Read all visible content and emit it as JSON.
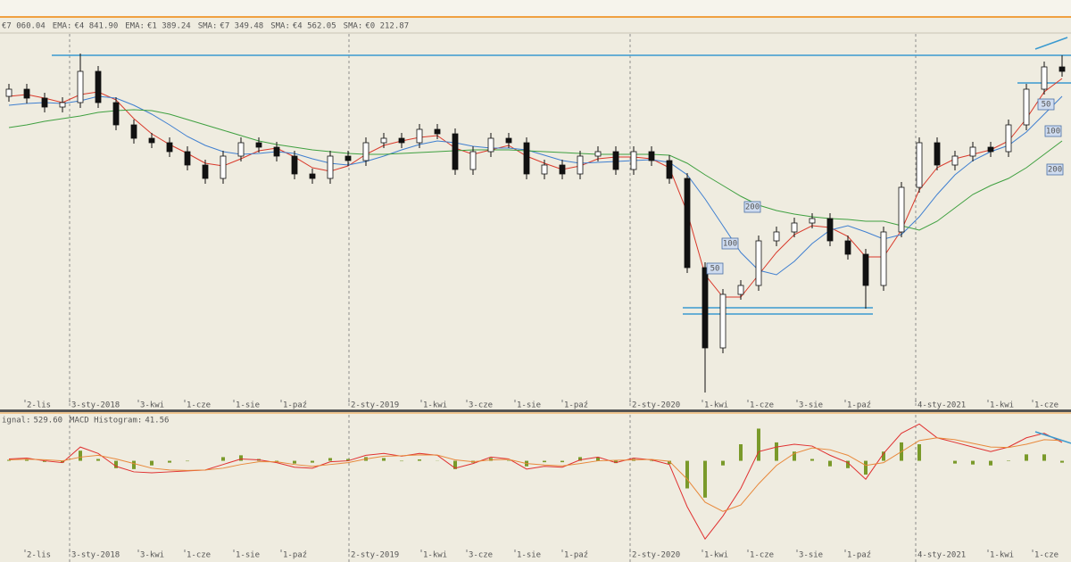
{
  "chart_data": [
    {
      "type": "candlestick",
      "indicators": [
        {
          "value": "€7 060.04",
          "color": "#808080"
        },
        {
          "name": "EMA:",
          "value": "€4 841.90",
          "color": "#e8883a"
        },
        {
          "name": "EMA:",
          "value": "€1 389.24",
          "color": "#d9392b"
        },
        {
          "name": "SMA:",
          "value": "€7 349.48",
          "color": "#3f7fd0"
        },
        {
          "name": "SMA:",
          "value": "€4 562.05",
          "color": "#9a7a3a"
        },
        {
          "name": "SMA:",
          "value": "€0 212.87",
          "color": "#3fa040"
        }
      ],
      "x": [
        10,
        30,
        50,
        70,
        90,
        110,
        130,
        150,
        170,
        190,
        210,
        230,
        250,
        270,
        290,
        310,
        330,
        350,
        370,
        390,
        410,
        430,
        450,
        470,
        490,
        510,
        530,
        550,
        570,
        590,
        610,
        630,
        650,
        670,
        690,
        710,
        730,
        750,
        770,
        790,
        810,
        830,
        850,
        870,
        890,
        910,
        930,
        950,
        970,
        990,
        1010,
        1030,
        1050,
        1070,
        1090,
        1110,
        1130,
        1150,
        1170,
        1190
      ],
      "open": [
        350,
        358,
        348,
        338,
        343,
        378,
        343,
        318,
        303,
        298,
        288,
        273,
        258,
        283,
        298,
        293,
        283,
        263,
        258,
        283,
        278,
        298,
        303,
        298,
        313,
        308,
        268,
        288,
        303,
        298,
        263,
        273,
        263,
        283,
        288,
        268,
        288,
        278,
        258,
        158,
        68,
        128,
        138,
        188,
        198,
        208,
        213,
        188,
        173,
        138,
        198,
        248,
        298,
        273,
        283,
        293,
        288,
        318,
        358,
        383
      ],
      "high": [
        364,
        364,
        354,
        349,
        398,
        384,
        349,
        324,
        309,
        304,
        294,
        279,
        289,
        304,
        304,
        299,
        289,
        269,
        289,
        289,
        304,
        309,
        309,
        319,
        319,
        314,
        294,
        309,
        309,
        304,
        279,
        279,
        289,
        294,
        294,
        294,
        294,
        284,
        264,
        164,
        134,
        144,
        194,
        204,
        214,
        219,
        219,
        194,
        179,
        204,
        254,
        304,
        304,
        289,
        299,
        299,
        324,
        364,
        389,
        396
      ],
      "low": [
        344,
        342,
        332,
        332,
        337,
        337,
        312,
        297,
        292,
        282,
        267,
        252,
        252,
        277,
        287,
        277,
        257,
        252,
        252,
        272,
        272,
        292,
        292,
        292,
        302,
        262,
        262,
        282,
        292,
        257,
        257,
        257,
        257,
        277,
        262,
        262,
        272,
        252,
        152,
        18,
        62,
        122,
        132,
        182,
        192,
        202,
        182,
        167,
        112,
        132,
        192,
        242,
        267,
        267,
        277,
        282,
        282,
        312,
        352,
        372
      ],
      "close": [
        358,
        348,
        338,
        343,
        378,
        343,
        318,
        303,
        298,
        288,
        273,
        258,
        283,
        298,
        293,
        283,
        263,
        258,
        283,
        278,
        298,
        303,
        298,
        313,
        308,
        268,
        288,
        303,
        298,
        263,
        273,
        263,
        283,
        288,
        268,
        288,
        278,
        258,
        158,
        68,
        128,
        138,
        188,
        198,
        208,
        213,
        188,
        173,
        138,
        198,
        248,
        298,
        273,
        283,
        293,
        288,
        318,
        358,
        383,
        378
      ],
      "lines": [
        {
          "color": "#d9392b",
          "values": [
            350,
            352,
            348,
            343,
            352,
            355,
            346,
            325,
            308,
            296,
            286,
            275,
            272,
            280,
            289,
            292,
            282,
            270,
            266,
            272,
            285,
            295,
            300,
            304,
            306,
            292,
            285,
            290,
            295,
            283,
            275,
            268,
            272,
            280,
            282,
            282,
            280,
            270,
            220,
            150,
            125,
            125,
            150,
            175,
            195,
            205,
            203,
            193,
            170,
            170,
            200,
            245,
            270,
            280,
            285,
            290,
            300,
            325,
            355,
            370
          ]
        },
        {
          "color": "#3f7fd0",
          "values": [
            340,
            342,
            343,
            342,
            345,
            350,
            348,
            340,
            330,
            318,
            305,
            295,
            288,
            285,
            286,
            288,
            286,
            280,
            275,
            273,
            277,
            283,
            290,
            296,
            300,
            298,
            294,
            292,
            292,
            290,
            284,
            278,
            275,
            276,
            277,
            278,
            279,
            276,
            262,
            235,
            205,
            175,
            155,
            150,
            165,
            185,
            200,
            205,
            198,
            190,
            195,
            215,
            240,
            262,
            278,
            288,
            295,
            310,
            330,
            350
          ]
        },
        {
          "color": "#3fa040",
          "values": [
            315,
            318,
            322,
            325,
            328,
            332,
            334,
            335,
            334,
            330,
            324,
            318,
            312,
            306,
            300,
            296,
            293,
            290,
            288,
            286,
            285,
            285,
            286,
            287,
            288,
            289,
            290,
            290,
            290,
            289,
            288,
            287,
            286,
            285,
            285,
            285,
            285,
            284,
            275,
            262,
            250,
            238,
            228,
            222,
            218,
            215,
            213,
            212,
            210,
            210,
            205,
            200,
            210,
            225,
            240,
            250,
            258,
            270,
            285,
            300
          ]
        }
      ],
      "levels": [
        {
          "value": 396,
          "x0": 58,
          "x1": 1200
        },
        {
          "value": 113,
          "x0": 765,
          "x1": 978
        },
        {
          "value": 106,
          "x0": 765,
          "x1": 978
        },
        {
          "value": 365,
          "x0": 1140,
          "x1": 1200
        }
      ],
      "trendlines": [
        {
          "x": [
            1160,
            1196
          ],
          "y": [
            403,
            416
          ]
        }
      ],
      "annotations": [
        {
          "text": "200",
          "x": 843,
          "y": 226
        },
        {
          "text": "100",
          "x": 818,
          "y": 185
        },
        {
          "text": "50",
          "x": 801,
          "y": 157
        },
        {
          "text": "50",
          "x": 1172,
          "y": 341
        },
        {
          "text": "100",
          "x": 1180,
          "y": 311
        },
        {
          "text": "200",
          "x": 1182,
          "y": 268
        }
      ],
      "xlim": [
        0,
        1200
      ],
      "ylim": [
        0,
        420
      ],
      "xticks": [
        {
          "value": 28,
          "label": "2-lis"
        },
        {
          "value": 78,
          "label": "3-sty-2018",
          "grid": true
        },
        {
          "value": 155,
          "label": "3-kwi"
        },
        {
          "value": 207,
          "label": "1-cze"
        },
        {
          "value": 262,
          "label": "1-sie"
        },
        {
          "value": 315,
          "label": "1-paź"
        },
        {
          "value": 391,
          "label": "2-sty-2019",
          "grid": true
        },
        {
          "value": 472,
          "label": "1-kwi"
        },
        {
          "value": 523,
          "label": "3-cze"
        },
        {
          "value": 577,
          "label": "1-sie"
        },
        {
          "value": 630,
          "label": "1-paź"
        },
        {
          "value": 706,
          "label": "2-sty-2020",
          "grid": true
        },
        {
          "value": 787,
          "label": "1-kwi"
        },
        {
          "value": 838,
          "label": "1-cze"
        },
        {
          "value": 893,
          "label": "3-sie"
        },
        {
          "value": 947,
          "label": "1-paź"
        },
        {
          "value": 1026,
          "label": "4-sty-2021",
          "grid": true
        },
        {
          "value": 1107,
          "label": "1-kwi"
        },
        {
          "value": 1157,
          "label": "1-cze"
        }
      ]
    },
    {
      "type": "macd",
      "indicators": [
        {
          "name": "ignal:",
          "value": "529.60",
          "color": "#7a9a2a"
        },
        {
          "name": "MACD Histogram:",
          "value": "41.56",
          "color": "#e03030"
        }
      ],
      "histogram_color": "#7a9a2a",
      "histogram": [
        10,
        12,
        -12,
        -20,
        110,
        20,
        -80,
        -90,
        -50,
        -20,
        -5,
        0,
        40,
        60,
        20,
        -10,
        -30,
        -20,
        30,
        20,
        40,
        30,
        -5,
        15,
        -2,
        -90,
        -20,
        30,
        5,
        -60,
        -15,
        -15,
        40,
        40,
        -25,
        20,
        -5,
        -35,
        -300,
        -400,
        -50,
        180,
        350,
        200,
        100,
        20,
        -60,
        -80,
        -150,
        100,
        200,
        180,
        0,
        -30,
        -40,
        -50,
        5,
        70,
        70,
        -20
      ],
      "lines": [
        {
          "color": "#e03030",
          "values": [
            20,
            30,
            0,
            -20,
            150,
            80,
            -60,
            -120,
            -130,
            -120,
            -110,
            -100,
            -40,
            20,
            10,
            -20,
            -70,
            -80,
            -10,
            0,
            60,
            80,
            50,
            80,
            60,
            -80,
            -30,
            40,
            20,
            -90,
            -60,
            -70,
            10,
            40,
            -20,
            30,
            10,
            -40,
            -500,
            -850,
            -600,
            -300,
            100,
            150,
            180,
            160,
            60,
            -20,
            -200,
            80,
            300,
            400,
            250,
            200,
            150,
            100,
            150,
            250,
            300,
            200
          ]
        },
        {
          "color": "#e8883a",
          "values": [
            10,
            18,
            12,
            0,
            40,
            60,
            20,
            -30,
            -80,
            -100,
            -105,
            -100,
            -80,
            -40,
            -10,
            -10,
            -40,
            -60,
            -40,
            -20,
            20,
            50,
            55,
            65,
            62,
            10,
            -10,
            10,
            15,
            -30,
            -45,
            -55,
            -30,
            0,
            5,
            10,
            15,
            -5,
            -200,
            -450,
            -550,
            -480,
            -250,
            -50,
            80,
            140,
            120,
            60,
            -50,
            -20,
            100,
            220,
            250,
            230,
            190,
            150,
            145,
            180,
            230,
            220
          ]
        }
      ],
      "trendlines": [
        {
          "x": [
            1160,
            1200
          ],
          "y": [
            316,
            190
          ]
        }
      ],
      "ylim": [
        -1100,
        500
      ]
    }
  ]
}
